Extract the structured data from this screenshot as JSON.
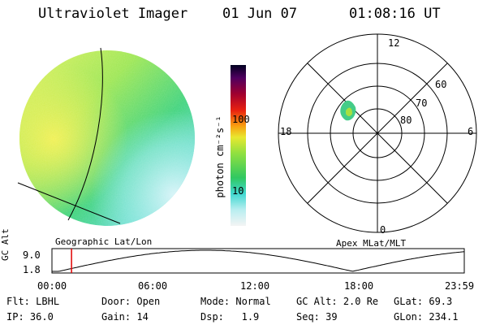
{
  "header": {
    "instrument": "Ultraviolet Imager",
    "date": "01 Jun 07",
    "time": "01:08:16 UT"
  },
  "colorbar": {
    "unit_label": "photon cm⁻²s⁻¹",
    "ticks": [
      {
        "label": "100",
        "value": 100
      },
      {
        "label": "10",
        "value": 10
      }
    ]
  },
  "globe": {
    "caption": "Geographic Lat/Lon"
  },
  "polar": {
    "caption": "Apex MLat/MLT",
    "mlt_labels": {
      "top": "12",
      "right": "6",
      "bottom": "0",
      "left": "18"
    },
    "mlat_labels": [
      "60",
      "70",
      "80"
    ]
  },
  "altitude_plot": {
    "ylabel": "GC Alt",
    "yticks": [
      "9.0",
      "1.8"
    ],
    "xticks": [
      "00:00",
      "06:00",
      "12:00",
      "18:00",
      "23:59"
    ],
    "marker_time_hours": 1.14,
    "curve_color": "#000000",
    "marker_color": "#e00000"
  },
  "status": {
    "row1": [
      {
        "label": "Flt:",
        "value": "LBHL"
      },
      {
        "label": "Door:",
        "value": "Open"
      },
      {
        "label": "Mode:",
        "value": "Normal"
      },
      {
        "label": "GC Alt:",
        "value": "2.0 Re"
      },
      {
        "label": "GLat:",
        "value": "69.3"
      }
    ],
    "row2": [
      {
        "label": "IP:",
        "value": "36.0"
      },
      {
        "label": "Gain:",
        "value": "14"
      },
      {
        "label": "Dsp:",
        "value": "1.9"
      },
      {
        "label": "Seq:",
        "value": "39"
      },
      {
        "label": "GLon:",
        "value": "234.1"
      }
    ]
  }
}
